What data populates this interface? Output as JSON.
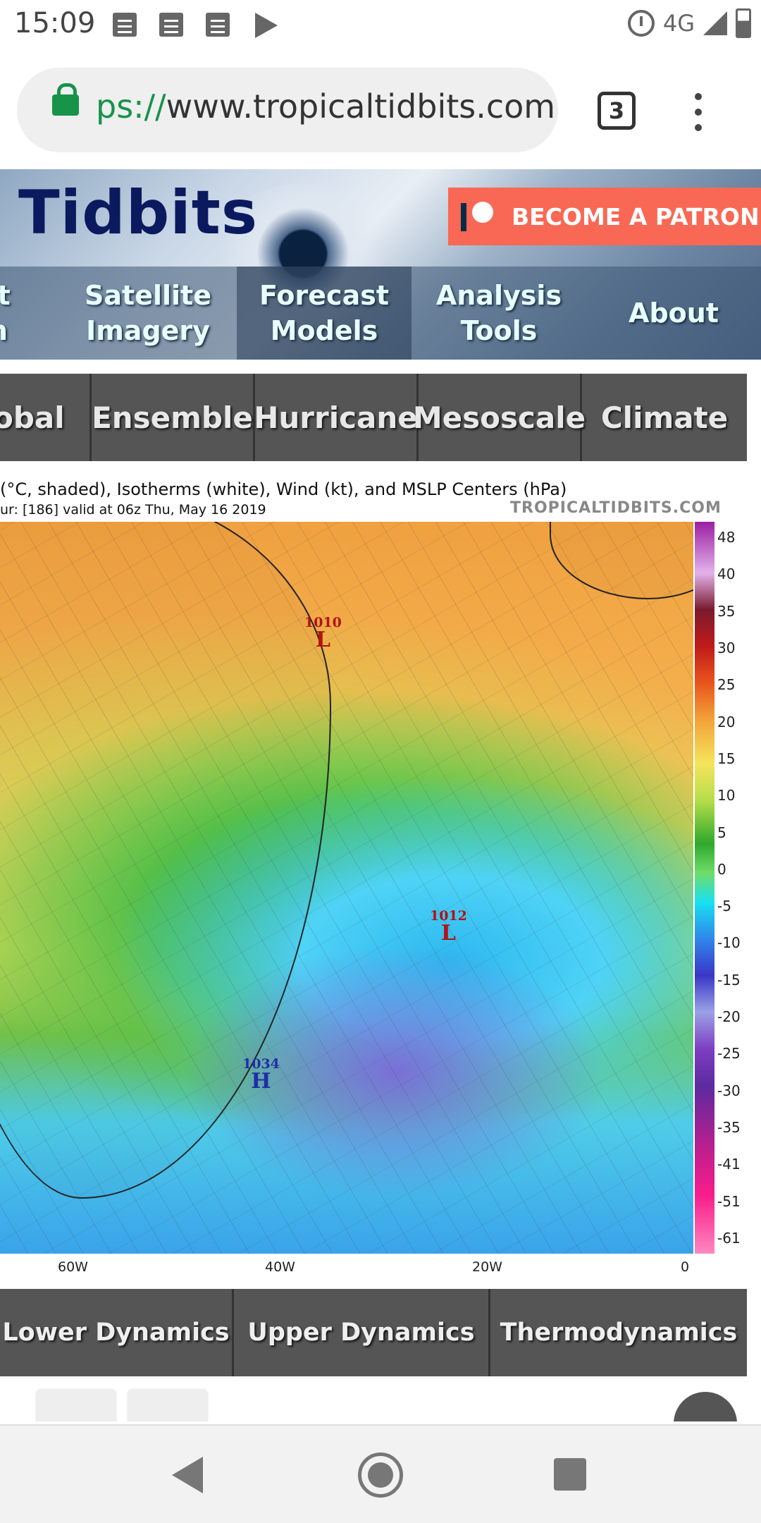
{
  "status_bar": {
    "time": "15:09",
    "network": "4G",
    "icons": [
      "notification-icon",
      "notification-icon",
      "notification-icon",
      "play-store-icon",
      "alarm-icon",
      "signal-icon",
      "battery-icon"
    ]
  },
  "browser": {
    "url_scheme": "ps://",
    "url_host": "www.tropicaltidbits.com",
    "tab_count": "3"
  },
  "site": {
    "logo": "Tidbits",
    "patron_button": "BECOME A PATRON",
    "nav": [
      {
        "line1": "ft",
        "line2": "n"
      },
      {
        "line1": "Satellite",
        "line2": "Imagery"
      },
      {
        "line1": "Forecast",
        "line2": "Models"
      },
      {
        "line1": "Analysis",
        "line2": "Tools"
      },
      {
        "line1": "About",
        "line2": ""
      }
    ],
    "active_nav": "Forecast Models"
  },
  "model_tabs": [
    "obal",
    "Ensemble",
    "Hurricane",
    "Mesoscale",
    "Climate"
  ],
  "map": {
    "title": "(°C, shaded), Isotherms (white), Wind (kt), and MSLP Centers (hPa)",
    "subtitle": "ur: [186]  valid at 06z Thu, May 16 2019",
    "watermark": "TROPICALTIDBITS.COM",
    "pressure_centers": [
      {
        "value": "1010",
        "type": "L"
      },
      {
        "value": "1012",
        "type": "L"
      },
      {
        "value": "1034",
        "type": "H"
      }
    ],
    "legend_ticks": [
      "48",
      "40",
      "35",
      "30",
      "25",
      "20",
      "15",
      "10",
      "5",
      "0",
      "-5",
      "-10",
      "-15",
      "-20",
      "-25",
      "-30",
      "-35",
      "-41",
      "-51",
      "-61"
    ],
    "x_ticks": [
      "60W",
      "40W",
      "20W",
      "0"
    ]
  },
  "category_tabs": [
    "Lower Dynamics",
    "Upper Dynamics",
    "Thermodynamics"
  ]
}
